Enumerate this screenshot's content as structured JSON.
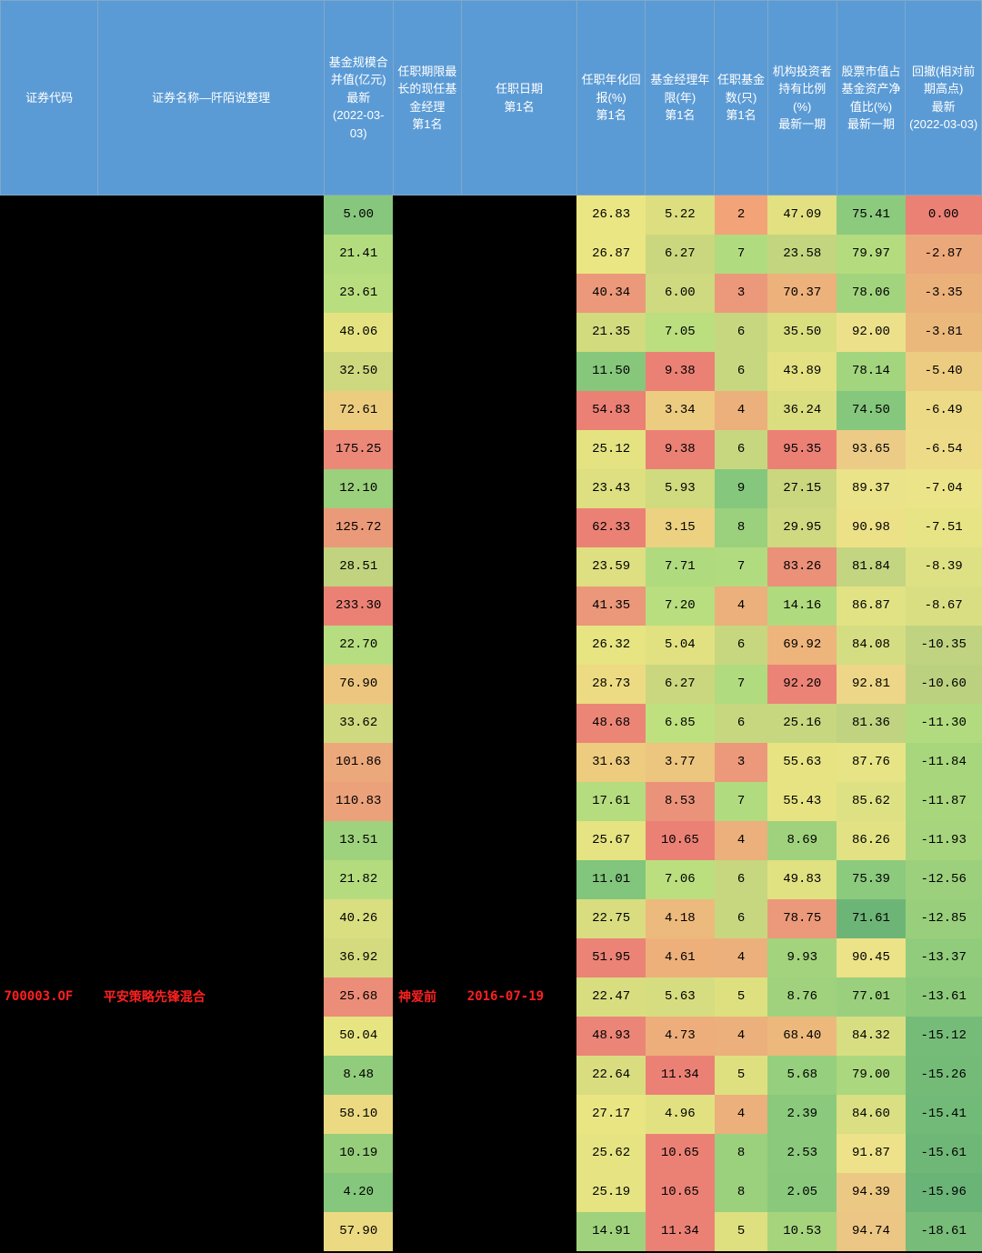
{
  "table": {
    "columns": [
      "证券代码",
      "证券名称—阡陌说整理",
      "基金规模合并值(亿元)\n最新\n(2022-03-03)",
      "任职期限最长的现任基金经理\n第1名",
      "任职日期\n第1名",
      "任职年化回报(%)\n第1名",
      "基金经理年限(年)\n第1名",
      "任职基金数(只)\n第1名",
      "机构投资者持有比例(%)\n最新一期",
      "股票市值占基金资产净值比(%)\n最新一期",
      "回撤(相对前期高点)\n最新\n(2022-03-03)"
    ],
    "col_widths": [
      "c0",
      "c1",
      "c2",
      "c3",
      "c4",
      "c5",
      "c6",
      "c7",
      "c8",
      "c9",
      "c10"
    ],
    "txt_cols": [
      0,
      1,
      3,
      4
    ],
    "code_cols": [
      0
    ],
    "highlight_row": 20,
    "rows": [
      {
        "cells": [
          "",
          "",
          "5.00",
          "",
          "",
          "26.83",
          "5.22",
          "2",
          "47.09",
          "75.41",
          "0.00"
        ],
        "colors": [
          "#000000",
          "#000000",
          "#87c77d",
          "#000000",
          "#000000",
          "#eae683",
          "#ddde80",
          "#f2a378",
          "#e2e081",
          "#8cca7e",
          "#eb8175"
        ]
      },
      {
        "cells": [
          "",
          "",
          "21.41",
          "",
          "",
          "26.87",
          "6.27",
          "7",
          "23.58",
          "79.97",
          "-2.87"
        ],
        "colors": [
          "#000000",
          "#000000",
          "#b3dc7f",
          "#000000",
          "#000000",
          "#eae683",
          "#cad77e",
          "#b1db7f",
          "#c3d57e",
          "#b4dc7f",
          "#eba87a"
        ]
      },
      {
        "cells": [
          "",
          "",
          "23.61",
          "",
          "",
          "40.34",
          "6.00",
          "3",
          "70.37",
          "78.06",
          "-3.35"
        ],
        "colors": [
          "#000000",
          "#000000",
          "#b9de7f",
          "#000000",
          "#000000",
          "#eb997a",
          "#cfd97f",
          "#eb997a",
          "#edb17c",
          "#a2d47e",
          "#ebb17b"
        ]
      },
      {
        "cells": [
          "",
          "",
          "48.06",
          "",
          "",
          "21.35",
          "7.05",
          "6",
          "35.50",
          "92.00",
          "-3.81"
        ],
        "colors": [
          "#000000",
          "#000000",
          "#e5e381",
          "#000000",
          "#000000",
          "#d3db7f",
          "#bbde7f",
          "#c7d77f",
          "#d9de7f",
          "#ede08b",
          "#ebb87c"
        ]
      },
      {
        "cells": [
          "",
          "",
          "32.50",
          "",
          "",
          "11.50",
          "9.38",
          "6",
          "43.89",
          "78.14",
          "-5.40"
        ],
        "colors": [
          "#000000",
          "#000000",
          "#cdd87f",
          "#000000",
          "#000000",
          "#86c77c",
          "#eb8175",
          "#c7d77f",
          "#e3e181",
          "#a3d57e",
          "#eccc80"
        ]
      },
      {
        "cells": [
          "",
          "",
          "72.61",
          "",
          "",
          "54.83",
          "3.34",
          "4",
          "36.24",
          "74.50",
          "-6.49"
        ],
        "colors": [
          "#000000",
          "#000000",
          "#eccd80",
          "#000000",
          "#000000",
          "#eb8075",
          "#eccc80",
          "#ebb07b",
          "#daDE80",
          "#85c77c",
          "#edda86"
        ]
      },
      {
        "cells": [
          "",
          "",
          "175.25",
          "",
          "",
          "25.12",
          "9.38",
          "6",
          "95.35",
          "93.65",
          "-6.54"
        ],
        "colors": [
          "#000000",
          "#000000",
          "#eb8878",
          "#000000",
          "#000000",
          "#e5e381",
          "#eb8175",
          "#c7d77f",
          "#eb8175",
          "#ebcb86",
          "#eddb87"
        ]
      },
      {
        "cells": [
          "",
          "",
          "12.10",
          "",
          "",
          "23.43",
          "5.93",
          "9",
          "27.15",
          "89.37",
          "-7.04"
        ],
        "colors": [
          "#000000",
          "#000000",
          "#9bd07d",
          "#000000",
          "#000000",
          "#dddf80",
          "#d0da7f",
          "#85c77c",
          "#cad77f",
          "#eae389",
          "#ece489"
        ]
      },
      {
        "cells": [
          "",
          "",
          "125.72",
          "",
          "",
          "62.33",
          "3.15",
          "8",
          "29.95",
          "90.98",
          "-7.51"
        ],
        "colors": [
          "#000000",
          "#000000",
          "#eb9a79",
          "#000000",
          "#000000",
          "#eb8175",
          "#ecd181",
          "#9bd07d",
          "#cfd980",
          "#ece187",
          "#e7e485"
        ]
      },
      {
        "cells": [
          "",
          "",
          "28.51",
          "",
          "",
          "23.59",
          "7.71",
          "7",
          "83.26",
          "81.84",
          "-8.39"
        ],
        "colors": [
          "#000000",
          "#000000",
          "#c2d37f",
          "#000000",
          "#000000",
          "#dedf80",
          "#b0da7e",
          "#b1db7f",
          "#eb9079",
          "#c3d580",
          "#dee183"
        ]
      },
      {
        "cells": [
          "",
          "",
          "233.30",
          "",
          "",
          "41.35",
          "7.20",
          "4",
          "14.16",
          "86.87",
          "-8.67"
        ],
        "colors": [
          "#000000",
          "#000000",
          "#eb8175",
          "#000000",
          "#000000",
          "#eb977a",
          "#b8de7f",
          "#ebb07b",
          "#b0da7e",
          "#e1e283",
          "#d9de82"
        ]
      },
      {
        "cells": [
          "",
          "",
          "22.70",
          "",
          "",
          "26.32",
          "5.04",
          "6",
          "69.92",
          "84.08",
          "-10.35"
        ],
        "colors": [
          "#000000",
          "#000000",
          "#b6dd7f",
          "#000000",
          "#000000",
          "#e7e482",
          "#e1e181",
          "#c7d77f",
          "#edb47c",
          "#d5dd82",
          "#c0d380"
        ]
      },
      {
        "cells": [
          "",
          "",
          "76.90",
          "",
          "",
          "28.73",
          "6.27",
          "7",
          "92.20",
          "92.81",
          "-10.60"
        ],
        "colors": [
          "#000000",
          "#000000",
          "#ecc67f",
          "#000000",
          "#000000",
          "#ecdb82",
          "#cad77f",
          "#b1db7f",
          "#eb8376",
          "#edd687",
          "#bcd17f"
        ]
      },
      {
        "cells": [
          "",
          "",
          "33.62",
          "",
          "",
          "48.68",
          "6.85",
          "6",
          "25.16",
          "81.36",
          "-11.30"
        ],
        "colors": [
          "#000000",
          "#000000",
          "#cfd97f",
          "#000000",
          "#000000",
          "#eb8677",
          "#bfe07f",
          "#c7d77f",
          "#c7d77f",
          "#bfd380",
          "#b1db7e"
        ]
      },
      {
        "cells": [
          "",
          "",
          "101.86",
          "",
          "",
          "31.63",
          "3.77",
          "3",
          "55.63",
          "87.76",
          "-11.84"
        ],
        "colors": [
          "#000000",
          "#000000",
          "#eba87a",
          "#000000",
          "#000000",
          "#edcc7f",
          "#ecc57f",
          "#eb997a",
          "#e7e382",
          "#e7e486",
          "#a8d67d"
        ]
      },
      {
        "cells": [
          "",
          "",
          "110.83",
          "",
          "",
          "17.61",
          "8.53",
          "7",
          "55.43",
          "85.62",
          "-11.87"
        ],
        "colors": [
          "#000000",
          "#000000",
          "#eba27a",
          "#000000",
          "#000000",
          "#b5dc7e",
          "#eb937a",
          "#b1db7f",
          "#e7e382",
          "#dee183",
          "#a8d67d"
        ]
      },
      {
        "cells": [
          "",
          "",
          "13.51",
          "",
          "",
          "25.67",
          "10.65",
          "4",
          "8.69",
          "86.26",
          "-11.93"
        ],
        "colors": [
          "#000000",
          "#000000",
          "#9fd27d",
          "#000000",
          "#000000",
          "#e6e382",
          "#eb8175",
          "#ebb07b",
          "#a0d27d",
          "#e2e284",
          "#a7d57d"
        ]
      },
      {
        "cells": [
          "",
          "",
          "21.82",
          "",
          "",
          "11.01",
          "7.06",
          "6",
          "49.83",
          "75.39",
          "-12.56"
        ],
        "colors": [
          "#000000",
          "#000000",
          "#b4dc7f",
          "#000000",
          "#000000",
          "#82c57c",
          "#bbdf7f",
          "#c7d77f",
          "#e0e181",
          "#8ccA7e",
          "#9dd07d"
        ]
      },
      {
        "cells": [
          "",
          "",
          "40.26",
          "",
          "",
          "22.75",
          "4.18",
          "6",
          "78.75",
          "71.61",
          "-12.85"
        ],
        "colors": [
          "#000000",
          "#000000",
          "#d9de80",
          "#000000",
          "#000000",
          "#d9dd80",
          "#ecba7c",
          "#c7d77f",
          "#eb997a",
          "#6db577",
          "#99cf7c"
        ]
      },
      {
        "cells": [
          "",
          "",
          "36.92",
          "",
          "",
          "51.95",
          "4.61",
          "4",
          "9.93",
          "90.45",
          "-13.37"
        ],
        "colors": [
          "#000000",
          "#000000",
          "#d4db7f",
          "#000000",
          "#000000",
          "#eb8376",
          "#edb07b",
          "#ebb07b",
          "#a3d37d",
          "#ece288",
          "#91cc7c"
        ]
      },
      {
        "cells": [
          "700003.OF",
          "平安策略先锋混合",
          "25.68",
          "神爱前",
          "2016-07-19",
          "22.47",
          "5.63",
          "5",
          "8.76",
          "77.01",
          "-13.61"
        ],
        "colors": [
          "#000000",
          "#000000",
          "#eb8d78",
          "#000000",
          "#000000",
          "#d8dd80",
          "#d6dd80",
          "#dee080",
          "#a0d27d",
          "#9ad07d",
          "#8dc97b"
        ]
      },
      {
        "cells": [
          "",
          "",
          "50.04",
          "",
          "",
          "48.93",
          "4.73",
          "4",
          "68.40",
          "84.32",
          "-15.12"
        ],
        "colors": [
          "#000000",
          "#000000",
          "#e7e482",
          "#000000",
          "#000000",
          "#eb8577",
          "#edae7b",
          "#ebb07b",
          "#edb87c",
          "#d7de82",
          "#76bc79"
        ]
      },
      {
        "cells": [
          "",
          "",
          "8.48",
          "",
          "",
          "22.64",
          "11.34",
          "5",
          "5.68",
          "79.00",
          "-15.26"
        ],
        "colors": [
          "#000000",
          "#000000",
          "#91cc7c",
          "#000000",
          "#000000",
          "#d9dd80",
          "#eb8175",
          "#dee080",
          "#96cf7d",
          "#abd77e",
          "#74bb78"
        ]
      },
      {
        "cells": [
          "",
          "",
          "58.10",
          "",
          "",
          "27.17",
          "4.96",
          "4",
          "2.39",
          "84.60",
          "-15.41"
        ],
        "colors": [
          "#000000",
          "#000000",
          "#ecda82",
          "#000000",
          "#000000",
          "#eae583",
          "#e2e181",
          "#ebb07b",
          "#8bc97c",
          "#d9df82",
          "#72ba78"
        ]
      },
      {
        "cells": [
          "",
          "",
          "10.19",
          "",
          "",
          "25.62",
          "10.65",
          "8",
          "2.53",
          "91.87",
          "-15.61"
        ],
        "colors": [
          "#000000",
          "#000000",
          "#96ce7c",
          "#000000",
          "#000000",
          "#e6e382",
          "#eb8175",
          "#9bd07d",
          "#8bc97c",
          "#ede289",
          "#6fb777"
        ]
      },
      {
        "cells": [
          "",
          "",
          "4.20",
          "",
          "",
          "25.19",
          "10.65",
          "8",
          "2.05",
          "94.39",
          "-15.96"
        ],
        "colors": [
          "#000000",
          "#000000",
          "#85c77c",
          "#000000",
          "#000000",
          "#e5e382",
          "#eb8175",
          "#9bd07d",
          "#8ac97c",
          "#ebc884",
          "#6ab477"
        ]
      },
      {
        "cells": [
          "",
          "",
          "57.90",
          "",
          "",
          "14.91",
          "11.34",
          "5",
          "10.53",
          "94.74",
          "-18.61"
        ],
        "colors": [
          "#000000",
          "#000000",
          "#ecda82",
          "#000000",
          "#000000",
          "#a0d27d",
          "#eb8175",
          "#dee080",
          "#a5d47d",
          "#ebc684",
          "#77bc78"
        ]
      }
    ]
  }
}
